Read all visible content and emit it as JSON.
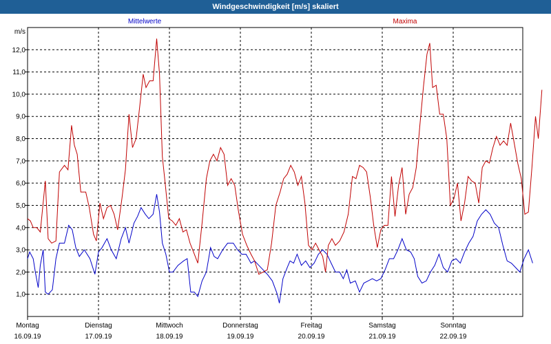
{
  "window": {
    "title": "Windgeschwindigkeit [m/s] skaliert"
  },
  "chart_data": {
    "type": "line",
    "unit_label": "m/s",
    "ylim": [
      0.0,
      13.0
    ],
    "y_ticks": [
      "1,0",
      "2,0",
      "3,0",
      "4,0",
      "5,0",
      "6,0",
      "7,0",
      "8,0",
      "9,0",
      "10,0",
      "11,0",
      "12,0"
    ],
    "x_categories": [
      {
        "day": "Montag",
        "date": "16.09.19"
      },
      {
        "day": "Dienstag",
        "date": "17.09.19"
      },
      {
        "day": "Mittwoch",
        "date": "18.09.19"
      },
      {
        "day": "Donnerstag",
        "date": "19.09.19"
      },
      {
        "day": "Freitag",
        "date": "20.09.19"
      },
      {
        "day": "Samstag",
        "date": "21.09.19"
      },
      {
        "day": "Sonntag",
        "date": "22.09.19"
      }
    ],
    "x_range_days": [
      0.0,
      7.25
    ],
    "grid": true,
    "series": [
      {
        "name": "Mittelwerte",
        "color": "#0000c8",
        "points": [
          [
            0.0,
            2.6
          ],
          [
            0.03,
            2.9
          ],
          [
            0.08,
            2.6
          ],
          [
            0.11,
            2.0
          ],
          [
            0.15,
            1.3
          ],
          [
            0.18,
            2.3
          ],
          [
            0.22,
            3.0
          ],
          [
            0.25,
            1.1
          ],
          [
            0.29,
            1.0
          ],
          [
            0.35,
            1.2
          ],
          [
            0.4,
            2.6
          ],
          [
            0.45,
            3.3
          ],
          [
            0.52,
            3.3
          ],
          [
            0.58,
            4.1
          ],
          [
            0.63,
            3.9
          ],
          [
            0.68,
            3.1
          ],
          [
            0.73,
            2.7
          ],
          [
            0.8,
            3.0
          ],
          [
            0.88,
            2.6
          ],
          [
            0.95,
            1.9
          ],
          [
            1.0,
            2.9
          ],
          [
            1.05,
            3.1
          ],
          [
            1.12,
            3.5
          ],
          [
            1.18,
            3.0
          ],
          [
            1.25,
            2.6
          ],
          [
            1.32,
            3.5
          ],
          [
            1.38,
            4.0
          ],
          [
            1.43,
            3.3
          ],
          [
            1.5,
            4.2
          ],
          [
            1.55,
            4.5
          ],
          [
            1.6,
            4.9
          ],
          [
            1.66,
            4.6
          ],
          [
            1.71,
            4.4
          ],
          [
            1.77,
            4.6
          ],
          [
            1.82,
            5.5
          ],
          [
            1.86,
            4.7
          ],
          [
            1.9,
            3.3
          ],
          [
            1.95,
            2.8
          ],
          [
            2.0,
            2.0
          ],
          [
            2.05,
            2.0
          ],
          [
            2.12,
            2.3
          ],
          [
            2.2,
            2.5
          ],
          [
            2.25,
            2.6
          ],
          [
            2.3,
            1.1
          ],
          [
            2.35,
            1.1
          ],
          [
            2.4,
            0.9
          ],
          [
            2.46,
            1.6
          ],
          [
            2.52,
            2.0
          ],
          [
            2.58,
            3.1
          ],
          [
            2.63,
            2.7
          ],
          [
            2.68,
            2.6
          ],
          [
            2.75,
            3.0
          ],
          [
            2.82,
            3.3
          ],
          [
            2.9,
            3.3
          ],
          [
            2.96,
            3.0
          ],
          [
            3.02,
            2.8
          ],
          [
            3.08,
            2.8
          ],
          [
            3.15,
            2.4
          ],
          [
            3.2,
            2.5
          ],
          [
            3.26,
            2.3
          ],
          [
            3.32,
            2.1
          ],
          [
            3.38,
            1.9
          ],
          [
            3.45,
            1.6
          ],
          [
            3.52,
            1.0
          ],
          [
            3.55,
            0.6
          ],
          [
            3.6,
            1.7
          ],
          [
            3.66,
            2.2
          ],
          [
            3.7,
            2.5
          ],
          [
            3.75,
            2.4
          ],
          [
            3.8,
            2.8
          ],
          [
            3.86,
            2.3
          ],
          [
            3.92,
            2.5
          ],
          [
            3.98,
            2.2
          ],
          [
            4.04,
            2.4
          ],
          [
            4.1,
            2.8
          ],
          [
            4.16,
            3.0
          ],
          [
            4.22,
            2.8
          ],
          [
            4.28,
            2.4
          ],
          [
            4.34,
            2.0
          ],
          [
            4.4,
            2.0
          ],
          [
            4.45,
            1.7
          ],
          [
            4.5,
            2.1
          ],
          [
            4.55,
            1.5
          ],
          [
            4.62,
            1.6
          ],
          [
            4.68,
            1.1
          ],
          [
            4.74,
            1.5
          ],
          [
            4.8,
            1.6
          ],
          [
            4.86,
            1.7
          ],
          [
            4.92,
            1.6
          ],
          [
            4.98,
            1.7
          ],
          [
            5.04,
            2.1
          ],
          [
            5.1,
            2.6
          ],
          [
            5.16,
            2.6
          ],
          [
            5.22,
            3.0
          ],
          [
            5.28,
            3.5
          ],
          [
            5.34,
            3.0
          ],
          [
            5.4,
            2.9
          ],
          [
            5.45,
            2.6
          ],
          [
            5.5,
            1.8
          ],
          [
            5.56,
            1.5
          ],
          [
            5.62,
            1.6
          ],
          [
            5.68,
            2.0
          ],
          [
            5.74,
            2.3
          ],
          [
            5.8,
            2.8
          ],
          [
            5.86,
            2.2
          ],
          [
            5.92,
            2.0
          ],
          [
            5.98,
            2.5
          ],
          [
            6.04,
            2.6
          ],
          [
            6.1,
            2.4
          ],
          [
            6.16,
            2.9
          ],
          [
            6.22,
            3.3
          ],
          [
            6.28,
            3.6
          ],
          [
            6.34,
            4.3
          ],
          [
            6.4,
            4.6
          ],
          [
            6.46,
            4.8
          ],
          [
            6.52,
            4.6
          ],
          [
            6.58,
            4.2
          ],
          [
            6.64,
            4.0
          ],
          [
            6.7,
            3.2
          ],
          [
            6.76,
            2.5
          ],
          [
            6.82,
            2.4
          ],
          [
            6.88,
            2.2
          ],
          [
            6.94,
            2.0
          ],
          [
            7.0,
            2.6
          ],
          [
            7.06,
            3.0
          ],
          [
            7.12,
            2.4
          ]
        ]
      },
      {
        "name": "Maxima",
        "color": "#c00000",
        "points": [
          [
            0.0,
            4.4
          ],
          [
            0.04,
            4.3
          ],
          [
            0.08,
            4.0
          ],
          [
            0.13,
            4.0
          ],
          [
            0.18,
            3.8
          ],
          [
            0.25,
            6.1
          ],
          [
            0.29,
            3.5
          ],
          [
            0.34,
            3.3
          ],
          [
            0.4,
            3.4
          ],
          [
            0.45,
            6.5
          ],
          [
            0.52,
            6.8
          ],
          [
            0.57,
            6.6
          ],
          [
            0.62,
            8.6
          ],
          [
            0.66,
            7.7
          ],
          [
            0.7,
            7.3
          ],
          [
            0.75,
            5.6
          ],
          [
            0.82,
            5.6
          ],
          [
            0.87,
            4.9
          ],
          [
            0.93,
            3.7
          ],
          [
            0.97,
            3.4
          ],
          [
            1.02,
            5.1
          ],
          [
            1.07,
            4.4
          ],
          [
            1.12,
            4.9
          ],
          [
            1.17,
            5.0
          ],
          [
            1.22,
            4.6
          ],
          [
            1.27,
            3.9
          ],
          [
            1.33,
            5.3
          ],
          [
            1.38,
            6.6
          ],
          [
            1.43,
            9.1
          ],
          [
            1.48,
            7.6
          ],
          [
            1.53,
            8.0
          ],
          [
            1.58,
            9.4
          ],
          [
            1.63,
            10.9
          ],
          [
            1.67,
            10.3
          ],
          [
            1.72,
            10.6
          ],
          [
            1.77,
            10.6
          ],
          [
            1.82,
            12.5
          ],
          [
            1.86,
            10.9
          ],
          [
            1.9,
            7.2
          ],
          [
            1.94,
            6.0
          ],
          [
            1.99,
            4.4
          ],
          [
            2.04,
            4.3
          ],
          [
            2.09,
            4.1
          ],
          [
            2.14,
            4.4
          ],
          [
            2.19,
            3.8
          ],
          [
            2.24,
            3.9
          ],
          [
            2.29,
            3.3
          ],
          [
            2.34,
            2.9
          ],
          [
            2.4,
            2.4
          ],
          [
            2.46,
            4.2
          ],
          [
            2.52,
            6.2
          ],
          [
            2.57,
            7.0
          ],
          [
            2.62,
            7.3
          ],
          [
            2.67,
            7.0
          ],
          [
            2.72,
            7.6
          ],
          [
            2.77,
            7.3
          ],
          [
            2.82,
            5.9
          ],
          [
            2.87,
            6.2
          ],
          [
            2.92,
            5.9
          ],
          [
            2.97,
            4.8
          ],
          [
            3.03,
            3.7
          ],
          [
            3.09,
            3.2
          ],
          [
            3.15,
            2.8
          ],
          [
            3.2,
            2.5
          ],
          [
            3.26,
            1.9
          ],
          [
            3.32,
            2.0
          ],
          [
            3.38,
            2.1
          ],
          [
            3.44,
            3.3
          ],
          [
            3.5,
            5.0
          ],
          [
            3.56,
            5.6
          ],
          [
            3.61,
            6.2
          ],
          [
            3.66,
            6.4
          ],
          [
            3.71,
            6.8
          ],
          [
            3.76,
            6.5
          ],
          [
            3.81,
            5.9
          ],
          [
            3.86,
            6.3
          ],
          [
            3.91,
            5.1
          ],
          [
            3.96,
            3.2
          ],
          [
            4.01,
            3.0
          ],
          [
            4.06,
            3.3
          ],
          [
            4.11,
            3.0
          ],
          [
            4.16,
            2.7
          ],
          [
            4.2,
            2.0
          ],
          [
            4.24,
            3.2
          ],
          [
            4.29,
            3.5
          ],
          [
            4.34,
            3.2
          ],
          [
            4.4,
            3.4
          ],
          [
            4.46,
            3.8
          ],
          [
            4.52,
            4.6
          ],
          [
            4.58,
            6.3
          ],
          [
            4.63,
            6.2
          ],
          [
            4.68,
            6.8
          ],
          [
            4.73,
            6.7
          ],
          [
            4.78,
            6.5
          ],
          [
            4.83,
            5.4
          ],
          [
            4.88,
            4.1
          ],
          [
            4.93,
            3.1
          ],
          [
            4.98,
            3.9
          ],
          [
            5.03,
            4.1
          ],
          [
            5.08,
            4.1
          ],
          [
            5.13,
            6.3
          ],
          [
            5.18,
            4.5
          ],
          [
            5.23,
            5.9
          ],
          [
            5.28,
            6.7
          ],
          [
            5.33,
            4.6
          ],
          [
            5.38,
            5.5
          ],
          [
            5.43,
            5.8
          ],
          [
            5.48,
            6.7
          ],
          [
            5.53,
            8.6
          ],
          [
            5.58,
            10.3
          ],
          [
            5.63,
            11.8
          ],
          [
            5.67,
            12.3
          ],
          [
            5.71,
            10.3
          ],
          [
            5.76,
            10.4
          ],
          [
            5.81,
            9.1
          ],
          [
            5.86,
            9.1
          ],
          [
            5.91,
            8.0
          ],
          [
            5.96,
            5.0
          ],
          [
            6.01,
            5.3
          ],
          [
            6.06,
            6.0
          ],
          [
            6.11,
            4.3
          ],
          [
            6.16,
            5.1
          ],
          [
            6.21,
            6.3
          ],
          [
            6.26,
            6.1
          ],
          [
            6.31,
            6.0
          ],
          [
            6.36,
            5.1
          ],
          [
            6.41,
            6.7
          ],
          [
            6.46,
            7.0
          ],
          [
            6.51,
            6.9
          ],
          [
            6.56,
            7.6
          ],
          [
            6.61,
            8.1
          ],
          [
            6.66,
            7.7
          ],
          [
            6.71,
            7.9
          ],
          [
            6.76,
            7.7
          ],
          [
            6.81,
            8.7
          ],
          [
            6.86,
            7.8
          ],
          [
            6.91,
            6.9
          ],
          [
            6.96,
            6.2
          ],
          [
            7.01,
            4.6
          ],
          [
            7.06,
            4.7
          ],
          [
            7.11,
            6.7
          ],
          [
            7.16,
            9.0
          ],
          [
            7.2,
            8.0
          ],
          [
            7.25,
            10.2
          ]
        ]
      }
    ]
  }
}
